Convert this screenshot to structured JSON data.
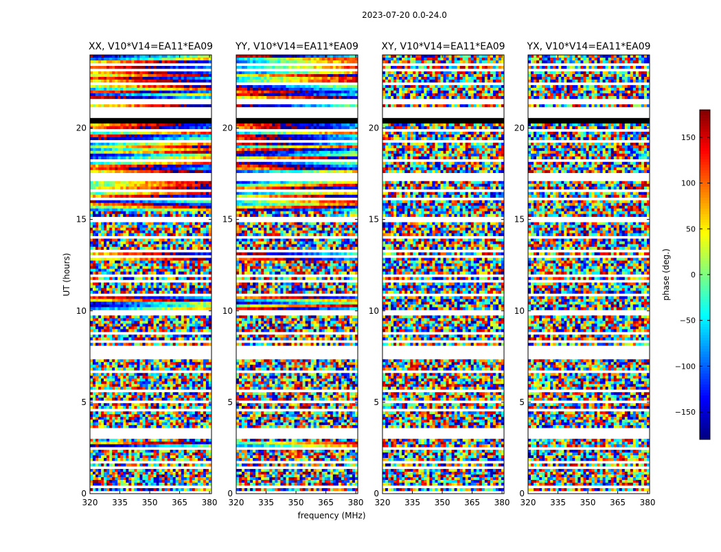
{
  "figure": {
    "suptitle": "2023-07-20 0.0-24.0"
  },
  "chart_data": {
    "type": "heatmap",
    "xlabel": "frequency (MHz)",
    "ylabel": "UT (hours)",
    "xlim": [
      320,
      381
    ],
    "ylim": [
      0,
      24
    ],
    "x_ticks": [
      320,
      335,
      350,
      365,
      380
    ],
    "y_ticks": [
      0,
      5,
      10,
      15,
      20
    ],
    "panels": [
      {
        "title": "XX, V10*V14=EA11*EA09",
        "pol": "XX"
      },
      {
        "title": "YY, V10*V14=EA11*EA09",
        "pol": "YY"
      },
      {
        "title": "XY, V10*V14=EA11*EA09",
        "pol": "XY"
      },
      {
        "title": "YX, V10*V14=EA11*EA09",
        "pol": "YX"
      }
    ],
    "colorbar": {
      "label": "phase (deg.)",
      "range": [
        -180,
        180
      ],
      "ticks": [
        150,
        100,
        50,
        0,
        -50,
        -100,
        -150
      ],
      "tick_labels": [
        "150",
        "100",
        "50",
        "0",
        "−50",
        "−100",
        "−150"
      ],
      "colormap": "jet"
    }
  }
}
